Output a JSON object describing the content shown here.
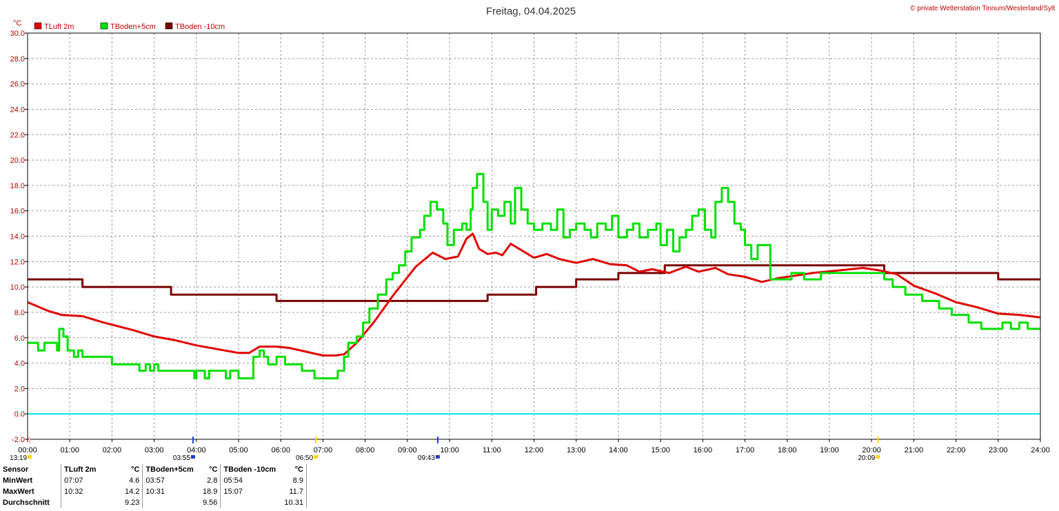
{
  "chart_data": {
    "type": "line",
    "title": "Freitag, 04.04.2025",
    "copyright": "© private Wetterstation Tinnum/Westerland/Sylt",
    "ylabel": "°C",
    "ylim": [
      -2,
      30
    ],
    "yticks": [
      "30.0",
      "28.0",
      "26.0",
      "24.0",
      "22.0",
      "20.0",
      "18.0",
      "16.0",
      "14.0",
      "12.0",
      "10.0",
      "8.0",
      "6.0",
      "4.0",
      "2.0",
      "0.0",
      "-2.0"
    ],
    "xlim": [
      0,
      24
    ],
    "xticks": [
      "00:00",
      "01:00",
      "02:00",
      "03:00",
      "04:00",
      "05:00",
      "06:00",
      "07:00",
      "08:00",
      "09:00",
      "10:00",
      "11:00",
      "12:00",
      "13:00",
      "14:00",
      "15:00",
      "16:00",
      "17:00",
      "18:00",
      "19:00",
      "20:00",
      "21:00",
      "22:00",
      "23:00",
      "24:00"
    ],
    "grid": true,
    "legend_position": "top-left",
    "reference_line": {
      "y": 0,
      "color": "#00e5ee"
    },
    "series": [
      {
        "name": "TLuft 2m",
        "color": "#e00000",
        "step": false,
        "x": [
          0,
          0.5,
          0.8,
          1.3,
          1.8,
          2.5,
          3,
          3.5,
          4,
          4.5,
          5,
          5.25,
          5.5,
          5.9,
          6.2,
          6.6,
          7.0,
          7.3,
          7.5,
          7.8,
          8.2,
          8.7,
          9.2,
          9.6,
          9.9,
          10.2,
          10.4,
          10.55,
          10.7,
          10.9,
          11.1,
          11.25,
          11.45,
          11.7,
          12.0,
          12.3,
          12.6,
          13.0,
          13.4,
          13.8,
          14.2,
          14.5,
          14.8,
          15.2,
          15.6,
          15.9,
          16.3,
          16.6,
          17.0,
          17.4,
          17.8,
          18.2,
          18.6,
          19.2,
          19.8,
          20.2,
          20.6,
          21.0,
          21.5,
          22.0,
          22.5,
          23.0,
          23.5,
          24.0
        ],
        "y": [
          8.8,
          8.1,
          7.8,
          7.7,
          7.2,
          6.6,
          6.1,
          5.8,
          5.4,
          5.1,
          4.8,
          4.8,
          5.3,
          5.3,
          5.2,
          4.9,
          4.6,
          4.6,
          4.7,
          5.6,
          7.2,
          9.5,
          11.6,
          12.7,
          12.2,
          12.4,
          13.8,
          14.2,
          13.0,
          12.6,
          12.7,
          12.5,
          13.4,
          12.9,
          12.3,
          12.6,
          12.2,
          11.9,
          12.2,
          11.8,
          11.7,
          11.2,
          11.4,
          11.1,
          11.6,
          11.2,
          11.5,
          11.0,
          10.8,
          10.4,
          10.7,
          10.9,
          11.1,
          11.3,
          11.5,
          11.3,
          11.0,
          10.1,
          9.5,
          8.8,
          8.4,
          7.9,
          7.8,
          7.6
        ]
      },
      {
        "name": "TBoden+5cm",
        "color": "#00e000",
        "step": true,
        "x": [
          0,
          0.2,
          0.25,
          0.4,
          0.6,
          0.7,
          0.75,
          0.85,
          0.95,
          1.1,
          1.2,
          1.3,
          1.75,
          2.0,
          2.2,
          2.5,
          2.6,
          2.65,
          2.8,
          2.9,
          3.0,
          3.1,
          3.5,
          3.95,
          4.0,
          4.2,
          4.3,
          4.7,
          4.8,
          5.0,
          5.2,
          5.35,
          5.5,
          5.6,
          5.7,
          5.9,
          6.1,
          6.25,
          6.5,
          6.6,
          6.8,
          7.0,
          7.25,
          7.35,
          7.5,
          7.6,
          7.8,
          7.95,
          8.1,
          8.3,
          8.5,
          8.65,
          8.8,
          8.95,
          9.1,
          9.3,
          9.4,
          9.55,
          9.7,
          9.85,
          9.95,
          10.1,
          10.3,
          10.4,
          10.5,
          10.55,
          10.65,
          10.8,
          10.9,
          11.0,
          11.15,
          11.3,
          11.45,
          11.55,
          11.7,
          11.85,
          12.0,
          12.2,
          12.4,
          12.55,
          12.7,
          12.85,
          13.0,
          13.2,
          13.35,
          13.5,
          13.7,
          13.85,
          14.0,
          14.2,
          14.35,
          14.5,
          14.7,
          14.9,
          15.0,
          15.15,
          15.3,
          15.45,
          15.6,
          15.75,
          15.9,
          16.05,
          16.2,
          16.3,
          16.45,
          16.6,
          16.75,
          16.9,
          17.0,
          17.15,
          17.3,
          17.6,
          17.9,
          18.1,
          18.4,
          18.8,
          19.2,
          19.6,
          20.0,
          20.3,
          20.5,
          20.8,
          21.2,
          21.6,
          21.9,
          22.3,
          22.6,
          22.9,
          23.1,
          23.3,
          23.5,
          23.7,
          24.0
        ],
        "y": [
          5.6,
          5.6,
          5.0,
          5.6,
          5.6,
          5.0,
          6.7,
          6.1,
          5.0,
          4.5,
          5.0,
          4.5,
          4.5,
          3.9,
          3.9,
          3.9,
          3.9,
          3.4,
          3.9,
          3.4,
          3.9,
          3.4,
          3.4,
          2.8,
          3.4,
          2.8,
          3.4,
          2.8,
          3.4,
          2.8,
          2.8,
          4.5,
          5.0,
          4.5,
          3.9,
          4.5,
          3.9,
          3.9,
          3.4,
          3.4,
          2.8,
          2.8,
          2.8,
          3.4,
          4.5,
          5.6,
          6.1,
          7.2,
          8.3,
          9.4,
          10.6,
          11.1,
          11.7,
          12.8,
          13.9,
          14.5,
          15.6,
          16.7,
          16.1,
          15.0,
          13.3,
          14.5,
          15.0,
          14.5,
          16.1,
          17.8,
          18.9,
          16.7,
          14.5,
          16.1,
          15.6,
          16.7,
          15.0,
          17.8,
          16.1,
          15.0,
          14.5,
          15.0,
          14.5,
          16.1,
          13.9,
          14.5,
          15.0,
          14.5,
          13.9,
          15.0,
          14.5,
          15.6,
          13.9,
          14.5,
          15.0,
          13.9,
          14.5,
          15.0,
          13.3,
          14.5,
          12.8,
          13.9,
          14.5,
          15.6,
          16.1,
          14.5,
          13.9,
          16.7,
          17.8,
          16.7,
          15.0,
          14.5,
          13.3,
          12.2,
          13.3,
          10.6,
          10.6,
          11.1,
          10.6,
          11.1,
          11.1,
          11.1,
          11.1,
          10.6,
          10.0,
          9.4,
          8.9,
          8.3,
          7.8,
          7.2,
          6.7,
          6.7,
          7.2,
          6.7,
          7.2,
          6.7,
          6.7
        ]
      },
      {
        "name": "TBoden -10cm",
        "color": "#7a0000",
        "step": true,
        "x": [
          0,
          1.3,
          3.4,
          5.9,
          10.9,
          12.05,
          13.0,
          14.0,
          15.1,
          20.3,
          23.0,
          24.0
        ],
        "y": [
          10.6,
          10.0,
          9.4,
          8.9,
          9.4,
          10.0,
          10.6,
          11.1,
          11.7,
          11.1,
          10.6,
          10.6
        ]
      }
    ],
    "x_markers": [
      {
        "time": "13:19",
        "at": 0.05,
        "color": "#ffd700"
      },
      {
        "time": "03:55",
        "at": 3.92,
        "color": "#2040c0"
      },
      {
        "time": "06:50",
        "at": 6.83,
        "color": "#ffd700"
      },
      {
        "time": "09:43",
        "at": 9.72,
        "color": "#2040c0"
      },
      {
        "time": "20:09",
        "at": 20.15,
        "color": "#ffd700"
      }
    ]
  },
  "stats": {
    "header": [
      "Sensor",
      "TLuft 2m",
      "°C",
      "TBoden+5cm",
      "°C",
      "TBoden -10cm",
      "°C"
    ],
    "rows": [
      {
        "label": "MinWert",
        "cells": [
          "07:07",
          "4.6",
          "03:57",
          "2.8",
          "05:54",
          "8.9"
        ]
      },
      {
        "label": "MaxWert",
        "cells": [
          "10:32",
          "14.2",
          "10:31",
          "18.9",
          "15:07",
          "11.7"
        ]
      },
      {
        "label": "Durchschnitt",
        "cells": [
          "",
          "9.23",
          "",
          "9.56",
          "",
          "10.31"
        ]
      }
    ]
  }
}
